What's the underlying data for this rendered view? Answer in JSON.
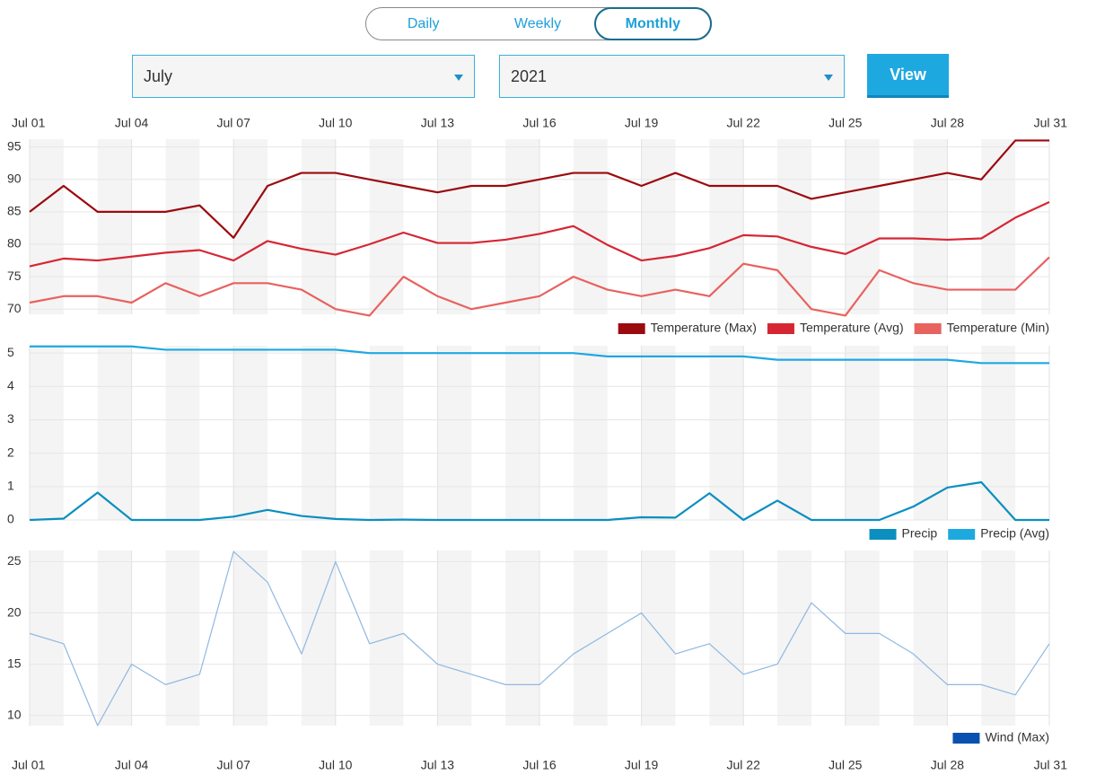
{
  "tabs": {
    "items": [
      "Daily",
      "Weekly",
      "Monthly"
    ],
    "active": 2
  },
  "controls": {
    "month": "July",
    "year": "2021",
    "button": "View"
  },
  "chart_data": [
    {
      "type": "line",
      "categories": [
        "Jul 01",
        null,
        null,
        "Jul 04",
        null,
        null,
        "Jul 07",
        null,
        null,
        "Jul 10",
        null,
        null,
        "Jul 13",
        null,
        null,
        "Jul 16",
        null,
        null,
        "Jul 19",
        null,
        null,
        "Jul 22",
        null,
        null,
        "Jul 25",
        null,
        null,
        "Jul 28",
        null,
        null,
        "Jul 31"
      ],
      "ylim": [
        69.2,
        96.2
      ],
      "yticks": [
        70,
        75,
        80,
        85,
        90,
        95
      ],
      "grid": true,
      "legend": "bottom-right",
      "series": [
        {
          "name": "Temperature (Max)",
          "color": "#9b0a0f",
          "values": [
            85,
            89,
            85,
            85,
            85,
            86,
            81,
            89,
            91,
            91,
            90,
            89,
            88,
            89,
            89,
            90,
            91,
            91,
            89,
            91,
            89,
            89,
            89,
            87,
            88,
            89,
            90,
            91,
            90,
            96,
            96
          ]
        },
        {
          "name": "Temperature (Avg)",
          "color": "#d62633",
          "values": [
            76.6,
            77.8,
            77.5,
            78.1,
            78.7,
            79.1,
            77.5,
            80.5,
            79.3,
            78.4,
            80.0,
            81.8,
            80.2,
            80.2,
            80.7,
            81.6,
            82.8,
            79.9,
            77.5,
            78.2,
            79.4,
            81.4,
            81.2,
            79.6,
            78.5,
            80.9,
            80.9,
            80.7,
            80.9,
            84.1,
            86.5
          ]
        },
        {
          "name": "Temperature (Min)",
          "color": "#e8625f",
          "values": [
            71,
            72,
            72,
            71,
            74,
            72,
            74,
            74,
            73,
            70,
            69,
            75,
            72,
            70,
            71,
            72,
            75,
            73,
            72,
            73,
            72,
            77,
            76,
            70,
            69,
            76,
            74,
            73,
            73,
            73,
            78
          ]
        }
      ]
    },
    {
      "type": "line",
      "categories": [
        "Jul 01",
        null,
        null,
        "Jul 04",
        null,
        null,
        "Jul 07",
        null,
        null,
        "Jul 10",
        null,
        null,
        "Jul 13",
        null,
        null,
        "Jul 16",
        null,
        null,
        "Jul 19",
        null,
        null,
        "Jul 22",
        null,
        null,
        "Jul 25",
        null,
        null,
        "Jul 28",
        null,
        null,
        "Jul 31"
      ],
      "ylim": [
        0,
        5.22
      ],
      "yticks": [
        0,
        1,
        2,
        3,
        4,
        5
      ],
      "grid": true,
      "legend": "bottom-right",
      "series": [
        {
          "name": "Precip",
          "color": "#0a8fc0",
          "values": [
            0,
            0.04,
            0.82,
            0,
            0,
            0,
            0.1,
            0.3,
            0.12,
            0.03,
            0,
            0.01,
            0,
            0,
            0,
            0,
            0,
            0,
            0.08,
            0.07,
            0.8,
            0,
            0.58,
            0,
            0,
            0,
            0.4,
            0.97,
            1.13,
            0,
            0
          ]
        },
        {
          "name": "Precip (Avg)",
          "color": "#1ea8e0",
          "values": [
            5.2,
            5.2,
            5.2,
            5.2,
            5.1,
            5.1,
            5.1,
            5.1,
            5.1,
            5.1,
            5.0,
            5.0,
            5.0,
            5.0,
            5.0,
            5.0,
            5.0,
            4.9,
            4.9,
            4.9,
            4.9,
            4.9,
            4.8,
            4.8,
            4.8,
            4.8,
            4.8,
            4.8,
            4.7,
            4.7,
            4.7
          ]
        }
      ]
    },
    {
      "type": "line",
      "categories": [
        "Jul 01",
        null,
        null,
        "Jul 04",
        null,
        null,
        "Jul 07",
        null,
        null,
        "Jul 10",
        null,
        null,
        "Jul 13",
        null,
        null,
        "Jul 16",
        null,
        null,
        "Jul 19",
        null,
        null,
        "Jul 22",
        null,
        null,
        "Jul 25",
        null,
        null,
        "Jul 28",
        null,
        null,
        "Jul 31"
      ],
      "ylim": [
        9,
        26.1
      ],
      "yticks": [
        10,
        15,
        20,
        25
      ],
      "grid": true,
      "legend": "bottom-right",
      "series": [
        {
          "name": "Wind (Max)",
          "color": "#0a50b0",
          "line_color": "#8fb8e0",
          "values": [
            18,
            17,
            9,
            15,
            13,
            14,
            26,
            23,
            16,
            25,
            17,
            18,
            15,
            14,
            13,
            13,
            16,
            18,
            20,
            16,
            17,
            14,
            15,
            21,
            18,
            18,
            16,
            13,
            13,
            12,
            17
          ]
        }
      ]
    }
  ]
}
